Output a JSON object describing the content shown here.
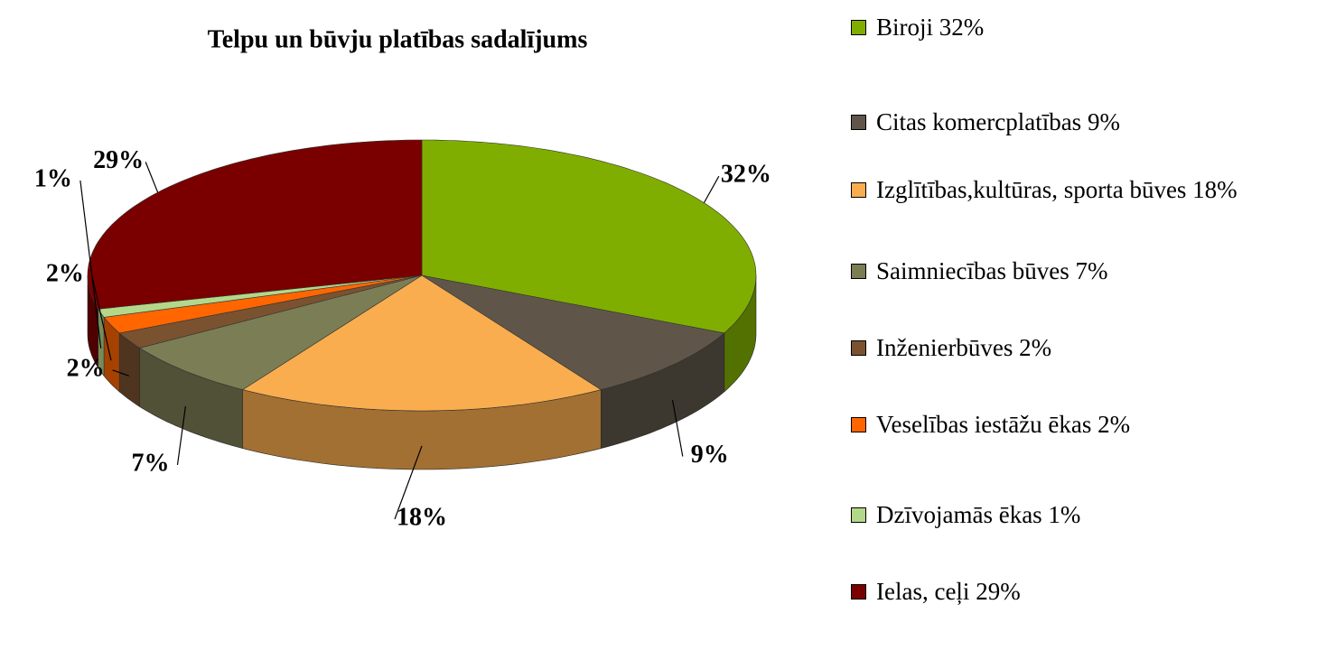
{
  "chart_data": {
    "type": "pie",
    "title": "Telpu un būvju platības sadalījums",
    "categories": [
      "Biroji 32%",
      "Citas komercplatības 9%",
      "Izglītības,kultūras, sporta būves 18%",
      "Saimniecības būves 7%",
      "Inženierbūves 2%",
      "Veselības iestāžu ēkas 2%",
      "Dzīvojamās ēkas 1%",
      "Ielas, ceļi 29%"
    ],
    "values": [
      32,
      9,
      18,
      7,
      2,
      2,
      1,
      29
    ],
    "value_labels": [
      "32%",
      "9%",
      "18%",
      "7%",
      "2%",
      "2%",
      "1%",
      "29%"
    ],
    "colors": [
      "#80ae00",
      "#5f5649",
      "#f9ad4e",
      "#7b7d55",
      "#7a5230",
      "#ff6600",
      "#b3d88a",
      "#7a0000"
    ],
    "legend": "right"
  }
}
